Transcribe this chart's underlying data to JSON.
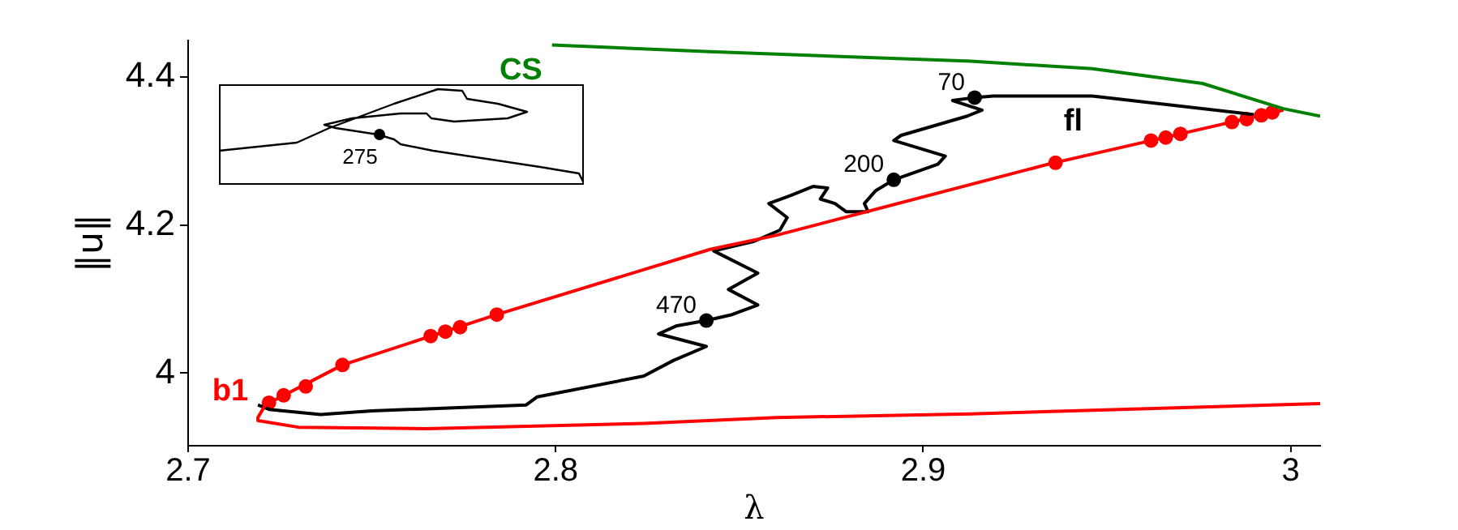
{
  "chart_data": {
    "type": "line",
    "xlabel": "λ",
    "ylabel": "‖u‖",
    "xlim": [
      2.7,
      3.008
    ],
    "ylim": [
      3.902,
      4.449
    ],
    "xticks": [
      2.7,
      2.8,
      2.9,
      3
    ],
    "yticks": [
      4,
      4.2,
      4.4
    ],
    "grid": false,
    "legend": false,
    "marker": "none",
    "line_style": "solid",
    "annotations": [
      "275"
    ],
    "series": [
      {
        "type": "line",
        "name": "CS",
        "color": "#008000",
        "x": [
          2.799,
          2.842,
          2.913,
          2.946,
          2.976,
          2.998,
          3.008
        ],
        "values": [
          4.443,
          4.434,
          4.421,
          4.411,
          4.391,
          4.357,
          4.347
        ]
      },
      {
        "type": "line",
        "name": "b1",
        "color": "#ff0000",
        "x": [
          2.719,
          2.721,
          2.742,
          2.784,
          2.842,
          2.86,
          2.934,
          2.998
        ],
        "values": [
          3.94,
          3.957,
          4.011,
          4.079,
          4.167,
          4.186,
          4.282,
          4.355
        ]
      },
      {
        "type": "line",
        "color": "#ff0000",
        "x": [
          2.719,
          2.719,
          2.73,
          2.765,
          2.824,
          2.86,
          2.913,
          3.008
        ],
        "values": [
          3.94,
          3.936,
          3.927,
          3.925,
          3.932,
          3.94,
          3.945,
          3.959
        ]
      },
      {
        "type": "line",
        "name": "fl",
        "color": "#000000",
        "x": [
          2.99,
          2.946,
          2.919,
          2.914,
          2.908,
          2.916,
          2.912,
          2.894,
          2.892,
          2.906,
          2.904,
          2.892,
          2.887,
          2.884,
          2.885,
          2.879,
          2.876,
          2.872,
          2.874,
          2.87,
          2.864,
          2.858,
          2.863,
          2.861,
          2.854,
          2.843,
          2.855,
          2.847,
          2.855,
          2.848,
          2.841,
          2.833,
          2.828,
          2.841,
          2.832,
          2.824,
          2.795,
          2.792,
          2.75,
          2.736,
          2.722,
          2.719
        ],
        "values": [
          4.349,
          4.374,
          4.374,
          4.372,
          4.368,
          4.355,
          4.347,
          4.321,
          4.314,
          4.293,
          4.282,
          4.261,
          4.246,
          4.229,
          4.218,
          4.218,
          4.229,
          4.235,
          4.25,
          4.252,
          4.24,
          4.229,
          4.21,
          4.193,
          4.178,
          4.165,
          4.135,
          4.113,
          4.092,
          4.079,
          4.071,
          4.064,
          4.053,
          4.036,
          4.017,
          3.996,
          3.968,
          3.957,
          3.949,
          3.944,
          3.951,
          3.957
        ]
      },
      {
        "type": "scatter",
        "color": "#ff0000",
        "marker": "circle",
        "x": [
          2.722,
          2.726,
          2.732,
          2.742,
          2.766,
          2.77,
          2.774,
          2.784,
          2.936,
          2.962,
          2.966,
          2.97,
          2.984,
          2.988,
          2.992,
          2.995
        ],
        "values": [
          3.96,
          3.97,
          3.982,
          4.011,
          4.05,
          4.056,
          4.062,
          4.079,
          4.284,
          4.314,
          4.318,
          4.323,
          4.339,
          4.343,
          4.348,
          4.352
        ]
      },
      {
        "type": "scatter",
        "name": "70",
        "color": "#000000",
        "marker": "circle",
        "x": [
          2.914
        ],
        "values": [
          4.372
        ]
      },
      {
        "type": "scatter",
        "name": "200",
        "color": "#000000",
        "marker": "circle",
        "x": [
          2.892
        ],
        "values": [
          4.261
        ]
      },
      {
        "type": "scatter",
        "name": "470",
        "color": "#000000",
        "marker": "circle",
        "x": [
          2.841
        ],
        "values": [
          4.071
        ]
      }
    ]
  }
}
